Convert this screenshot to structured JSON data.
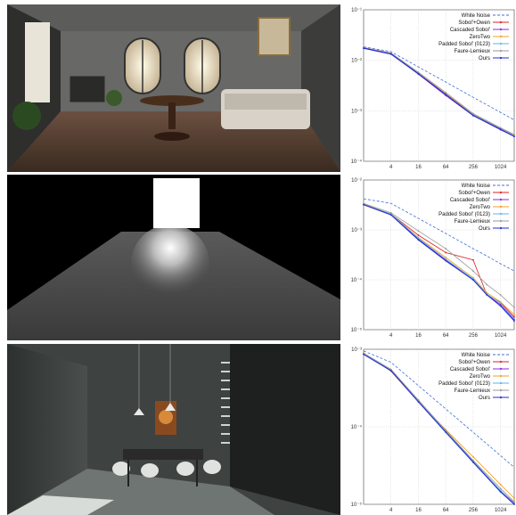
{
  "scenes": [
    {
      "name": "living-room"
    },
    {
      "name": "area-light-plane"
    },
    {
      "name": "dining-room"
    }
  ],
  "chart_data": [
    {
      "type": "line",
      "xscale": "log2",
      "yscale": "log10",
      "x_ticks": [
        "4",
        "16",
        "64",
        "256",
        "1024"
      ],
      "x": [
        1,
        4,
        16,
        64,
        256,
        1024,
        2048
      ],
      "y_ticks": [
        {
          "value": 0.1,
          "label": "10⁻¹"
        },
        {
          "value": 0.01,
          "label": "10⁻²"
        },
        {
          "value": 0.001,
          "label": "10⁻³"
        },
        {
          "value": 0.0001,
          "label": "10⁻⁴"
        }
      ],
      "ylim": [
        0.0001,
        0.1
      ],
      "grid": true,
      "legend": "top-right",
      "series": [
        {
          "name": "White Noise",
          "color": "#3b6fd8",
          "dash": true,
          "values": [
            0.0185,
            0.0148,
            0.0074,
            0.0037,
            0.00185,
            0.00093,
            0.00066
          ]
        },
        {
          "name": "Sobol'+Owen",
          "color": "#e02020",
          "values": [
            0.0175,
            0.0135,
            0.0055,
            0.0021,
            0.00082,
            0.00043,
            0.00032
          ]
        },
        {
          "name": "Cascaded Sobol'",
          "color": "#8a2be2",
          "values": [
            0.0172,
            0.0132,
            0.0053,
            0.002,
            0.0008,
            0.00042,
            0.00031
          ]
        },
        {
          "name": "ZeroTwo",
          "color": "#f0a020",
          "values": [
            0.0178,
            0.0137,
            0.0056,
            0.0022,
            0.00085,
            0.00045,
            0.00033
          ]
        },
        {
          "name": "Padded Sobol' (0123)",
          "color": "#5fb3e8",
          "values": [
            0.0176,
            0.0136,
            0.0055,
            0.0021,
            0.00083,
            0.00044,
            0.00032
          ]
        },
        {
          "name": "Faure-Lemieux",
          "color": "#999999",
          "values": [
            0.018,
            0.014,
            0.0058,
            0.0023,
            0.00088,
            0.00046,
            0.00034
          ]
        },
        {
          "name": "Ours",
          "color": "#1f2fd0",
          "values": [
            0.0174,
            0.0134,
            0.0054,
            0.0021,
            0.00081,
            0.00043,
            0.00031
          ]
        }
      ]
    },
    {
      "type": "line",
      "xscale": "log2",
      "yscale": "log10",
      "x_ticks": [
        "4",
        "16",
        "64",
        "256",
        "1024"
      ],
      "x": [
        1,
        4,
        16,
        64,
        256,
        512,
        1024,
        2048
      ],
      "y_ticks": [
        {
          "value": 0.01,
          "label": "10⁻²"
        },
        {
          "value": 0.001,
          "label": "10⁻³"
        },
        {
          "value": 0.0001,
          "label": "10⁻⁴"
        },
        {
          "value": 1e-05,
          "label": "10⁻⁵"
        }
      ],
      "ylim": [
        1e-05,
        0.01
      ],
      "grid": true,
      "legend": "top-right",
      "series": [
        {
          "name": "White Noise",
          "color": "#3b6fd8",
          "dash": true,
          "values": [
            0.0042,
            0.0034,
            0.0017,
            0.00085,
            0.00042,
            0.0003,
            0.00021,
            0.00015
          ]
        },
        {
          "name": "Sobol'+Owen",
          "color": "#e02020",
          "values": [
            0.0032,
            0.0021,
            0.00078,
            0.00035,
            0.00025,
            5e-05,
            3.5e-05,
            1.8e-05
          ]
        },
        {
          "name": "Cascaded Sobol'",
          "color": "#8a2be2",
          "values": [
            0.0032,
            0.0021,
            0.00065,
            0.00025,
            0.0001,
            5e-05,
            3.2e-05,
            1.6e-05
          ]
        },
        {
          "name": "ZeroTwo",
          "color": "#f0a020",
          "values": [
            0.0033,
            0.0021,
            0.0007,
            0.00028,
            0.00011,
            5.5e-05,
            3.6e-05,
            2e-05
          ]
        },
        {
          "name": "Padded Sobol' (0123)",
          "color": "#5fb3e8",
          "values": [
            0.0032,
            0.0021,
            0.00068,
            0.00026,
            0.000105,
            5.2e-05,
            3.4e-05,
            1.7e-05
          ]
        },
        {
          "name": "Faure-Lemieux",
          "color": "#999999",
          "values": [
            0.0034,
            0.0022,
            0.00095,
            0.00042,
            0.00015,
            8e-05,
            5e-05,
            2.8e-05
          ]
        },
        {
          "name": "Ours",
          "color": "#1f2fd0",
          "values": [
            0.0032,
            0.002,
            0.00063,
            0.00024,
            0.0001,
            5e-05,
            3e-05,
            1.5e-05
          ]
        }
      ]
    },
    {
      "type": "line",
      "xscale": "log2",
      "yscale": "log10",
      "x_ticks": [
        "4",
        "16",
        "64",
        "256",
        "1024"
      ],
      "x": [
        1,
        4,
        16,
        64,
        256,
        1024,
        2048
      ],
      "y_ticks": [
        {
          "value": 0.001,
          "label": "10⁻³"
        },
        {
          "value": 0.0001,
          "label": "10⁻⁴"
        },
        {
          "value": 1e-05,
          "label": "10⁻⁵"
        }
      ],
      "ylim": [
        1e-05,
        0.001
      ],
      "grid": true,
      "legend": "top-right",
      "series": [
        {
          "name": "White Noise",
          "color": "#3b6fd8",
          "dash": true,
          "values": [
            0.00095,
            0.00068,
            0.00034,
            0.00017,
            8.5e-05,
            4.25e-05,
            3e-05
          ]
        },
        {
          "name": "Sobol'+Owen",
          "color": "#e02020",
          "values": [
            0.00088,
            0.00055,
            0.00022,
            8.8e-05,
            3.6e-05,
            1.5e-05,
            1.05e-05
          ]
        },
        {
          "name": "Cascaded Sobol'",
          "color": "#8a2be2",
          "values": [
            0.00087,
            0.00054,
            0.00022,
            8.7e-05,
            3.5e-05,
            1.5e-05,
            1.02e-05
          ]
        },
        {
          "name": "ZeroTwo",
          "color": "#f0a020",
          "values": [
            0.0009,
            0.00052,
            0.00021,
            9.2e-05,
            4.1e-05,
            1.8e-05,
            1.2e-05
          ]
        },
        {
          "name": "Padded Sobol' (0123)",
          "color": "#5fb3e8",
          "values": [
            0.00088,
            0.00054,
            0.00022,
            8.8e-05,
            3.6e-05,
            1.5e-05,
            1.04e-05
          ]
        },
        {
          "name": "Faure-Lemieux",
          "color": "#999999",
          "values": [
            0.00089,
            0.00055,
            0.00022,
            9e-05,
            3.7e-05,
            1.6e-05,
            1.08e-05
          ]
        },
        {
          "name": "Ours",
          "color": "#1f2fd0",
          "values": [
            0.00086,
            0.00053,
            0.00021,
            8.5e-05,
            3.5e-05,
            1.45e-05,
            1e-05
          ]
        }
      ]
    }
  ]
}
